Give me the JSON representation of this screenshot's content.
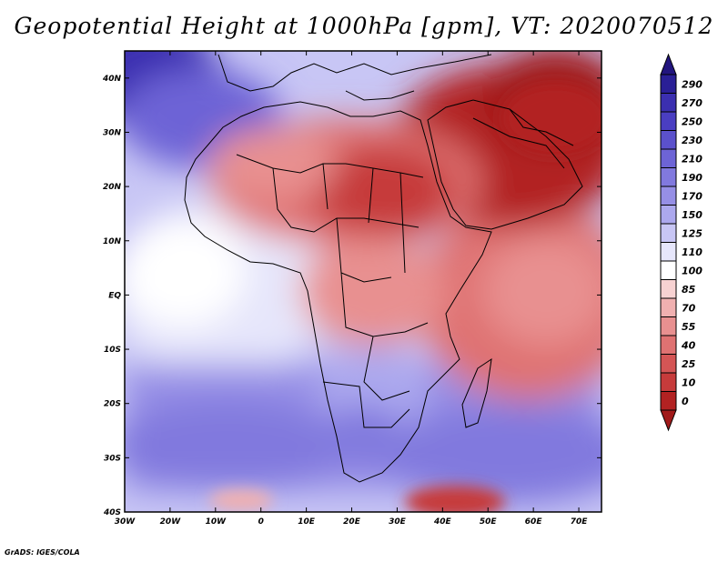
{
  "title": "Geopotential Height at 1000hPa [gpm], VT: 2020070512",
  "credit": "GrADS: IGES/COLA",
  "map": {
    "lon_range": [
      -30,
      75
    ],
    "lat_range": [
      -40,
      45
    ],
    "lon_ticks": [
      {
        "v": -30,
        "label": "30W"
      },
      {
        "v": -20,
        "label": "20W"
      },
      {
        "v": -10,
        "label": "10W"
      },
      {
        "v": 0,
        "label": "0"
      },
      {
        "v": 10,
        "label": "10E"
      },
      {
        "v": 20,
        "label": "20E"
      },
      {
        "v": 30,
        "label": "30E"
      },
      {
        "v": 40,
        "label": "40E"
      },
      {
        "v": 50,
        "label": "50E"
      },
      {
        "v": 60,
        "label": "60E"
      },
      {
        "v": 70,
        "label": "70E"
      }
    ],
    "lat_ticks": [
      {
        "v": 40,
        "label": "40N"
      },
      {
        "v": 30,
        "label": "30N"
      },
      {
        "v": 20,
        "label": "20N"
      },
      {
        "v": 10,
        "label": "10N"
      },
      {
        "v": 0,
        "label": "EQ"
      },
      {
        "v": -10,
        "label": "10S"
      },
      {
        "v": -20,
        "label": "20S"
      },
      {
        "v": -30,
        "label": "30S"
      },
      {
        "v": -40,
        "label": "40S"
      }
    ]
  },
  "colorbar": {
    "levels": [
      "290",
      "270",
      "250",
      "230",
      "210",
      "190",
      "170",
      "150",
      "125",
      "110",
      "100",
      "85",
      "70",
      "55",
      "40",
      "25",
      "10",
      "0"
    ],
    "colors": [
      "#2a1f96",
      "#3b2fb0",
      "#4a3ec2",
      "#5b51cc",
      "#6d64d6",
      "#8179de",
      "#968fe6",
      "#aca8ee",
      "#c8c6f5",
      "#e6e6fb",
      "#ffffff",
      "#f7d2d2",
      "#f0b0b0",
      "#e89090",
      "#df7272",
      "#d45555",
      "#c63b3b",
      "#b22222"
    ],
    "top_arrow_color": "#22157e",
    "bottom_arrow_color": "#a11a1a"
  }
}
